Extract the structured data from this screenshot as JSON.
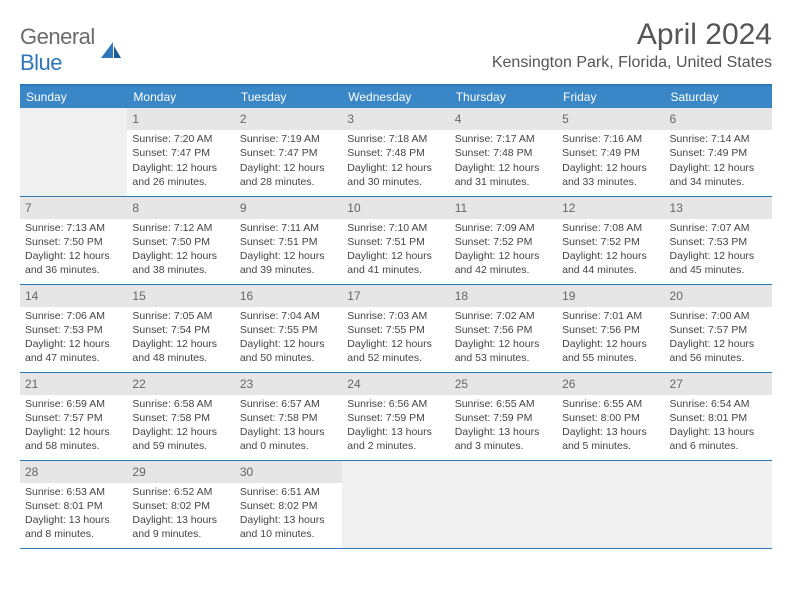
{
  "logo": {
    "textGray": "General",
    "textBlue": "Blue"
  },
  "title": "April 2024",
  "location": "Kensington Park, Florida, United States",
  "columns": [
    "Sunday",
    "Monday",
    "Tuesday",
    "Wednesday",
    "Thursday",
    "Friday",
    "Saturday"
  ],
  "colors": {
    "headerBg": "#3a87c8",
    "headerText": "#ffffff",
    "borderBlue": "#2f77bb",
    "logoGray": "#6b6b6b",
    "logoBlue": "#2f77bb",
    "textBody": "#444444",
    "emptyCell": "#f0f0f0",
    "shadeBg": "#e6e6e6"
  },
  "weeks": [
    [
      null,
      {
        "n": "1",
        "sr": "7:20 AM",
        "ss": "7:47 PM",
        "dl": "12 hours and 26 minutes."
      },
      {
        "n": "2",
        "sr": "7:19 AM",
        "ss": "7:47 PM",
        "dl": "12 hours and 28 minutes."
      },
      {
        "n": "3",
        "sr": "7:18 AM",
        "ss": "7:48 PM",
        "dl": "12 hours and 30 minutes."
      },
      {
        "n": "4",
        "sr": "7:17 AM",
        "ss": "7:48 PM",
        "dl": "12 hours and 31 minutes."
      },
      {
        "n": "5",
        "sr": "7:16 AM",
        "ss": "7:49 PM",
        "dl": "12 hours and 33 minutes."
      },
      {
        "n": "6",
        "sr": "7:14 AM",
        "ss": "7:49 PM",
        "dl": "12 hours and 34 minutes."
      }
    ],
    [
      {
        "n": "7",
        "sr": "7:13 AM",
        "ss": "7:50 PM",
        "dl": "12 hours and 36 minutes."
      },
      {
        "n": "8",
        "sr": "7:12 AM",
        "ss": "7:50 PM",
        "dl": "12 hours and 38 minutes."
      },
      {
        "n": "9",
        "sr": "7:11 AM",
        "ss": "7:51 PM",
        "dl": "12 hours and 39 minutes."
      },
      {
        "n": "10",
        "sr": "7:10 AM",
        "ss": "7:51 PM",
        "dl": "12 hours and 41 minutes."
      },
      {
        "n": "11",
        "sr": "7:09 AM",
        "ss": "7:52 PM",
        "dl": "12 hours and 42 minutes."
      },
      {
        "n": "12",
        "sr": "7:08 AM",
        "ss": "7:52 PM",
        "dl": "12 hours and 44 minutes."
      },
      {
        "n": "13",
        "sr": "7:07 AM",
        "ss": "7:53 PM",
        "dl": "12 hours and 45 minutes."
      }
    ],
    [
      {
        "n": "14",
        "sr": "7:06 AM",
        "ss": "7:53 PM",
        "dl": "12 hours and 47 minutes."
      },
      {
        "n": "15",
        "sr": "7:05 AM",
        "ss": "7:54 PM",
        "dl": "12 hours and 48 minutes."
      },
      {
        "n": "16",
        "sr": "7:04 AM",
        "ss": "7:55 PM",
        "dl": "12 hours and 50 minutes."
      },
      {
        "n": "17",
        "sr": "7:03 AM",
        "ss": "7:55 PM",
        "dl": "12 hours and 52 minutes."
      },
      {
        "n": "18",
        "sr": "7:02 AM",
        "ss": "7:56 PM",
        "dl": "12 hours and 53 minutes."
      },
      {
        "n": "19",
        "sr": "7:01 AM",
        "ss": "7:56 PM",
        "dl": "12 hours and 55 minutes."
      },
      {
        "n": "20",
        "sr": "7:00 AM",
        "ss": "7:57 PM",
        "dl": "12 hours and 56 minutes."
      }
    ],
    [
      {
        "n": "21",
        "sr": "6:59 AM",
        "ss": "7:57 PM",
        "dl": "12 hours and 58 minutes."
      },
      {
        "n": "22",
        "sr": "6:58 AM",
        "ss": "7:58 PM",
        "dl": "12 hours and 59 minutes."
      },
      {
        "n": "23",
        "sr": "6:57 AM",
        "ss": "7:58 PM",
        "dl": "13 hours and 0 minutes."
      },
      {
        "n": "24",
        "sr": "6:56 AM",
        "ss": "7:59 PM",
        "dl": "13 hours and 2 minutes."
      },
      {
        "n": "25",
        "sr": "6:55 AM",
        "ss": "7:59 PM",
        "dl": "13 hours and 3 minutes."
      },
      {
        "n": "26",
        "sr": "6:55 AM",
        "ss": "8:00 PM",
        "dl": "13 hours and 5 minutes."
      },
      {
        "n": "27",
        "sr": "6:54 AM",
        "ss": "8:01 PM",
        "dl": "13 hours and 6 minutes."
      }
    ],
    [
      {
        "n": "28",
        "sr": "6:53 AM",
        "ss": "8:01 PM",
        "dl": "13 hours and 8 minutes."
      },
      {
        "n": "29",
        "sr": "6:52 AM",
        "ss": "8:02 PM",
        "dl": "13 hours and 9 minutes."
      },
      {
        "n": "30",
        "sr": "6:51 AM",
        "ss": "8:02 PM",
        "dl": "13 hours and 10 minutes."
      },
      null,
      null,
      null,
      null
    ]
  ]
}
